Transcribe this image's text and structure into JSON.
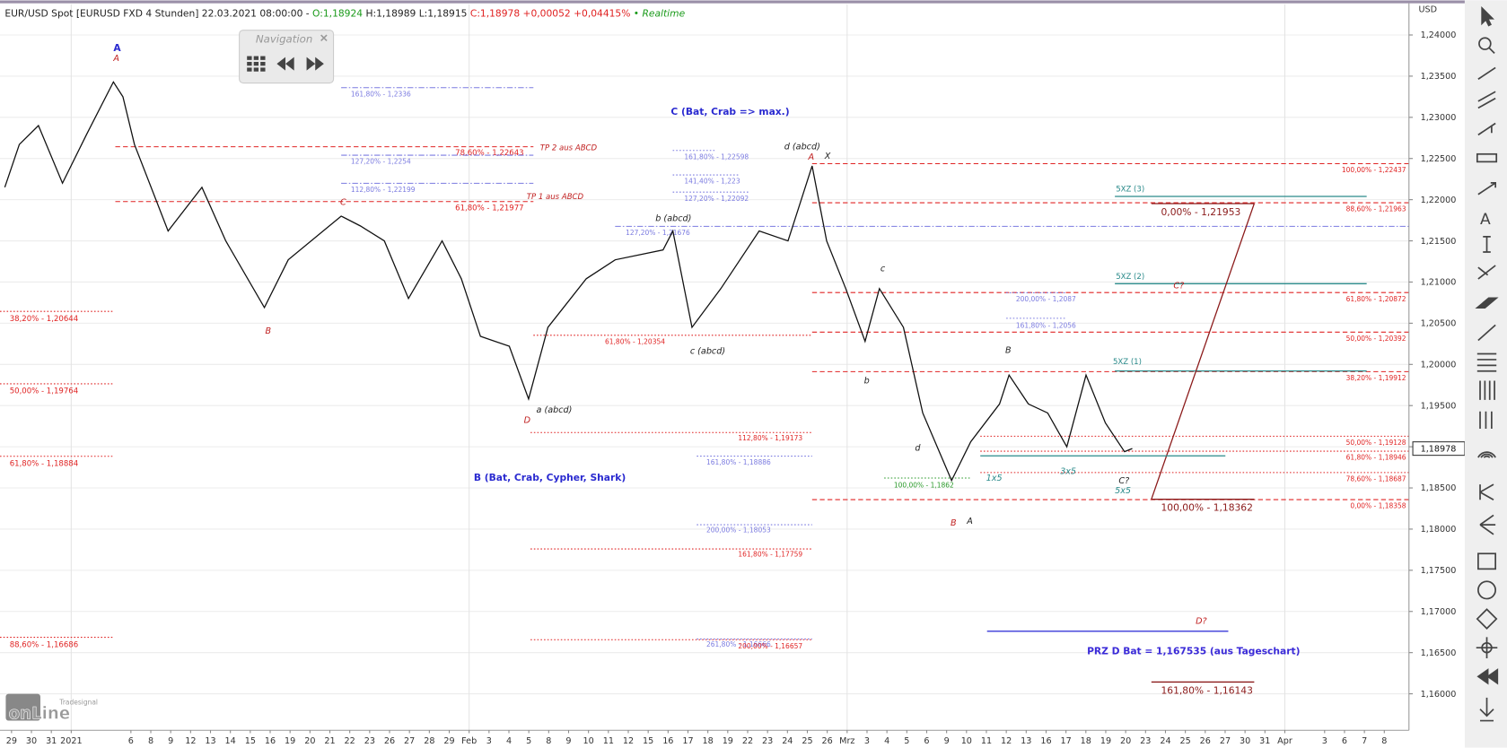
{
  "chart_data": {
    "type": "line",
    "header": {
      "instrument": "EUR/USD Spot [EURUSD FXD 4 Stunden] 22.03.2021 08:00:00 - ",
      "open": "O:1,18924",
      "high_low": " H:1,18989 L:1,18915 ",
      "close": "C:1,18978 +0,00052 +0,04415%",
      "status": " • Realtime"
    },
    "navigation_title": "Navigation",
    "y_unit": "USD",
    "logo": [
      "Tradesignal",
      "onLine"
    ],
    "last": {
      "value": 1.18978,
      "label": "1,18978"
    },
    "ylim": [
      1.15557,
      1.24373
    ],
    "yticks": [
      {
        "value": 1.16,
        "label": "1,16000"
      },
      {
        "value": 1.165,
        "label": "1,16500"
      },
      {
        "value": 1.17,
        "label": "1,17000"
      },
      {
        "value": 1.175,
        "label": "1,17500"
      },
      {
        "value": 1.18,
        "label": "1,18000"
      },
      {
        "value": 1.185,
        "label": "1,18500"
      },
      {
        "value": 1.19,
        "label": "1,19000"
      },
      {
        "value": 1.195,
        "label": "1,19500"
      },
      {
        "value": 1.2,
        "label": "1,20000"
      },
      {
        "value": 1.205,
        "label": "1,20500"
      },
      {
        "value": 1.21,
        "label": "1,21000"
      },
      {
        "value": 1.215,
        "label": "1,21500"
      },
      {
        "value": 1.22,
        "label": "1,22000"
      },
      {
        "value": 1.225,
        "label": "1,22500"
      },
      {
        "value": 1.23,
        "label": "1,23000"
      },
      {
        "value": 1.235,
        "label": "1,23500"
      },
      {
        "value": 1.24,
        "label": "1,24000"
      }
    ],
    "xlim": [
      -0.58,
      70.24
    ],
    "xticks": [
      {
        "value": 0,
        "label": "29"
      },
      {
        "value": 1,
        "label": "30"
      },
      {
        "value": 2,
        "label": "31"
      },
      {
        "value": 3,
        "label": "2021"
      },
      {
        "value": 6,
        "label": "6"
      },
      {
        "value": 7,
        "label": "8"
      },
      {
        "value": 8,
        "label": "9"
      },
      {
        "value": 9,
        "label": "12"
      },
      {
        "value": 10,
        "label": "13"
      },
      {
        "value": 11,
        "label": "14"
      },
      {
        "value": 12,
        "label": "15"
      },
      {
        "value": 13,
        "label": "16"
      },
      {
        "value": 14,
        "label": "19"
      },
      {
        "value": 15,
        "label": "20"
      },
      {
        "value": 16,
        "label": "21"
      },
      {
        "value": 17,
        "label": "22"
      },
      {
        "value": 18,
        "label": "23"
      },
      {
        "value": 19,
        "label": "26"
      },
      {
        "value": 20,
        "label": "27"
      },
      {
        "value": 21,
        "label": "28"
      },
      {
        "value": 22,
        "label": "29"
      },
      {
        "value": 23,
        "label": "Feb"
      },
      {
        "value": 24,
        "label": "3"
      },
      {
        "value": 25,
        "label": "4"
      },
      {
        "value": 26,
        "label": "5"
      },
      {
        "value": 27,
        "label": "8"
      },
      {
        "value": 28,
        "label": "9"
      },
      {
        "value": 29,
        "label": "10"
      },
      {
        "value": 30,
        "label": "11"
      },
      {
        "value": 31,
        "label": "12"
      },
      {
        "value": 32,
        "label": "15"
      },
      {
        "value": 33,
        "label": "16"
      },
      {
        "value": 34,
        "label": "17"
      },
      {
        "value": 35,
        "label": "18"
      },
      {
        "value": 36,
        "label": "19"
      },
      {
        "value": 37,
        "label": "22"
      },
      {
        "value": 38,
        "label": "23"
      },
      {
        "value": 39,
        "label": "24"
      },
      {
        "value": 40,
        "label": "25"
      },
      {
        "value": 41,
        "label": "26"
      },
      {
        "value": 42,
        "label": "Mrz"
      },
      {
        "value": 43,
        "label": "3"
      },
      {
        "value": 44,
        "label": "4"
      },
      {
        "value": 45,
        "label": "5"
      },
      {
        "value": 46,
        "label": "6"
      },
      {
        "value": 47,
        "label": "9"
      },
      {
        "value": 48,
        "label": "10"
      },
      {
        "value": 49,
        "label": "11"
      },
      {
        "value": 50,
        "label": "12"
      },
      {
        "value": 51,
        "label": "13"
      },
      {
        "value": 52,
        "label": "16"
      },
      {
        "value": 53,
        "label": "17"
      },
      {
        "value": 54,
        "label": "18"
      },
      {
        "value": 55,
        "label": "19"
      },
      {
        "value": 56,
        "label": "20"
      },
      {
        "value": 57,
        "label": "23"
      },
      {
        "value": 58,
        "label": "24"
      },
      {
        "value": 59,
        "label": "25"
      },
      {
        "value": 60,
        "label": "26"
      },
      {
        "value": 61,
        "label": "27"
      },
      {
        "value": 62,
        "label": "30"
      },
      {
        "value": 63,
        "label": "31"
      },
      {
        "value": 64,
        "label": "Apr"
      },
      {
        "value": 66,
        "label": "3"
      },
      {
        "value": 67,
        "label": "6"
      },
      {
        "value": 68,
        "label": "7"
      },
      {
        "value": 69,
        "label": "8"
      }
    ],
    "series": [
      {
        "name": "EUR/USD",
        "color": "#111111",
        "x": [
          -0.34,
          0.39,
          1.35,
          2.56,
          3.77,
          5.12,
          5.6,
          6.18,
          7.87,
          9.57,
          10.77,
          12.71,
          13.91,
          16.57,
          17.54,
          18.74,
          19.95,
          21.64,
          22.61,
          23.57,
          25.02,
          25.99,
          26.96,
          28.89,
          30.34,
          32.75,
          33.24,
          34.2,
          35.65,
          37.58,
          39.03,
          40.24,
          40.97,
          41.93,
          42.9,
          43.62,
          44.83,
          45.8,
          47.25,
          48.21,
          49.66,
          50.14,
          51.11,
          52.08,
          53.04,
          54.01,
          54.98,
          55.94,
          56.33
        ],
        "values": [
          1.2215,
          1.2267,
          1.229,
          1.222,
          1.2279,
          1.2343,
          1.2325,
          1.2267,
          1.2162,
          1.2215,
          1.215,
          1.2069,
          1.2127,
          1.218,
          1.2168,
          1.215,
          1.208,
          1.215,
          1.2104,
          1.2034,
          1.2022,
          1.1958,
          1.2045,
          1.2104,
          1.2127,
          1.2139,
          1.2162,
          1.2045,
          1.2092,
          1.2162,
          1.215,
          1.2241,
          1.215,
          1.2092,
          1.2028,
          1.2092,
          1.2045,
          1.1941,
          1.1859,
          1.1906,
          1.1952,
          1.1987,
          1.1952,
          1.1941,
          1.19,
          1.1987,
          1.1929,
          1.1894,
          1.18978
        ]
      }
    ],
    "levels": [
      {
        "label": "161,80% - 1,2336",
        "value": 1.2336,
        "color": "#7b7be0",
        "style": "dashdot"
      },
      {
        "label": "78,60% - 1,22643",
        "value": 1.22643,
        "color": "#e02424",
        "style": "dashed"
      },
      {
        "label": "127,20% - 1,2254",
        "value": 1.2254,
        "color": "#7b7be0",
        "style": "dashdot"
      },
      {
        "label": "112,80% - 1,22199",
        "value": 1.22199,
        "color": "#7b7be0",
        "style": "dashdot"
      },
      {
        "label": "61,80% - 1,21977",
        "value": 1.21977,
        "color": "#e02424",
        "style": "dashed"
      },
      {
        "label": "161,80% - 1,22598",
        "value": 1.22598,
        "color": "#7b7be0",
        "style": "dotted"
      },
      {
        "label": "141,40% - 1,223",
        "value": 1.223,
        "color": "#7b7be0",
        "style": "dotted"
      },
      {
        "label": "127,20% - 1,22092",
        "value": 1.22092,
        "color": "#7b7be0",
        "style": "dotted"
      },
      {
        "label": "127,20% - 1,21676",
        "value": 1.21676,
        "color": "#7b7be0",
        "style": "dashdot"
      },
      {
        "label": "38,20% - 1,20644",
        "value": 1.20644,
        "color": "#e02424",
        "style": "dotted"
      },
      {
        "label": "50,00% - 1,19764",
        "value": 1.19764,
        "color": "#e02424",
        "style": "dotted"
      },
      {
        "label": "61,80% - 1,18884",
        "value": 1.18884,
        "color": "#e02424",
        "style": "dotted"
      },
      {
        "label": "88,60% - 1,16686",
        "value": 1.16686,
        "color": "#e02424",
        "style": "dotted"
      },
      {
        "label": "61,80% - 1,20354",
        "value": 1.20354,
        "color": "#e02424",
        "style": "dotted"
      },
      {
        "label": "112,80% - 1,19173",
        "value": 1.19173,
        "color": "#e02424",
        "style": "dotted"
      },
      {
        "label": "161,80% - 1,18886",
        "value": 1.18886,
        "color": "#7b7be0",
        "style": "dotted"
      },
      {
        "label": "200,00% - 1,18053",
        "value": 1.18053,
        "color": "#7b7be0",
        "style": "dotted"
      },
      {
        "label": "161,80% - 1,17759",
        "value": 1.17759,
        "color": "#e02424",
        "style": "dotted"
      },
      {
        "label": "261,80% - 1,16666",
        "value": 1.16666,
        "color": "#7b7be0",
        "style": "dotted"
      },
      {
        "label": "200,00% - 1,16657",
        "value": 1.16657,
        "color": "#e02424",
        "style": "dotted"
      },
      {
        "label": "100,00% - 1,22437",
        "value": 1.22437,
        "color": "#e02424",
        "style": "dashed"
      },
      {
        "label": "88,60% - 1,21963",
        "value": 1.21963,
        "color": "#e02424",
        "style": "dashed"
      },
      {
        "label": "61,80% - 1,20872",
        "value": 1.20872,
        "color": "#e02424",
        "style": "dashed"
      },
      {
        "label": "50,00% - 1,20392",
        "value": 1.20392,
        "color": "#e02424",
        "style": "dashed"
      },
      {
        "label": "38,20% - 1,19912",
        "value": 1.19912,
        "color": "#e02424",
        "style": "dashed"
      },
      {
        "label": "50,00% - 1,19128",
        "value": 1.19128,
        "color": "#e02424",
        "style": "dotted"
      },
      {
        "label": "61,80% - 1,18946",
        "value": 1.18946,
        "color": "#e02424",
        "style": "dotted"
      },
      {
        "label": "78,60% - 1,18687",
        "value": 1.18687,
        "color": "#e02424",
        "style": "dotted"
      },
      {
        "label": "0,00% - 1,18358",
        "value": 1.18358,
        "color": "#e02424",
        "style": "dashed"
      },
      {
        "label": "200,00% - 1,2087",
        "value": 1.2087,
        "color": "#7b7be0",
        "style": "dotted"
      },
      {
        "label": "161,80% - 1,2056",
        "value": 1.2056,
        "color": "#7b7be0",
        "style": "dotted"
      },
      {
        "label": "100,00% - 1,1862",
        "value": 1.1862,
        "color": "#2a9a2a",
        "style": "dotted"
      },
      {
        "label": "5XZ (3)",
        "value": 1.2204,
        "color": "#2a8a8a",
        "style": "solid"
      },
      {
        "label": "5XZ (2)",
        "value": 1.2098,
        "color": "#2a8a8a",
        "style": "solid"
      },
      {
        "label": "5XZ (1)",
        "value": 1.1992,
        "color": "#2a8a8a",
        "style": "solid"
      },
      {
        "label": "0,00% - 1,21953",
        "value": 1.21953,
        "color": "#8b1a1a",
        "style": "solid"
      },
      {
        "label": "100,00% - 1,18362",
        "value": 1.18362,
        "color": "#8b1a1a",
        "style": "solid"
      },
      {
        "label": "161,80% - 1,16143",
        "value": 1.16143,
        "color": "#8b1a1a",
        "style": "solid"
      }
    ],
    "guides": [
      {
        "value": 1.1889,
        "color": "#2a8a8a"
      },
      {
        "value": 1.1676,
        "color": "#3a3ad8"
      }
    ],
    "annotations": [
      "A",
      "A",
      "C (Bat, Crab => max.)",
      "B (Bat, Crab, Cypher, Shark)",
      "C",
      "B",
      "D",
      "a (abcd)",
      "b (abcd)",
      "c (abcd)",
      "d (abcd)",
      "A",
      "X",
      "c",
      "b",
      "B",
      "d",
      "B",
      "A",
      "1x5",
      "3x5",
      "C?",
      "5x5",
      "C?",
      "D?",
      "PRZ D Bat = 1,167535 (aus Tageschart)",
      "TP 2 aus ABCD",
      "TP 1 aus ABCD"
    ]
  }
}
